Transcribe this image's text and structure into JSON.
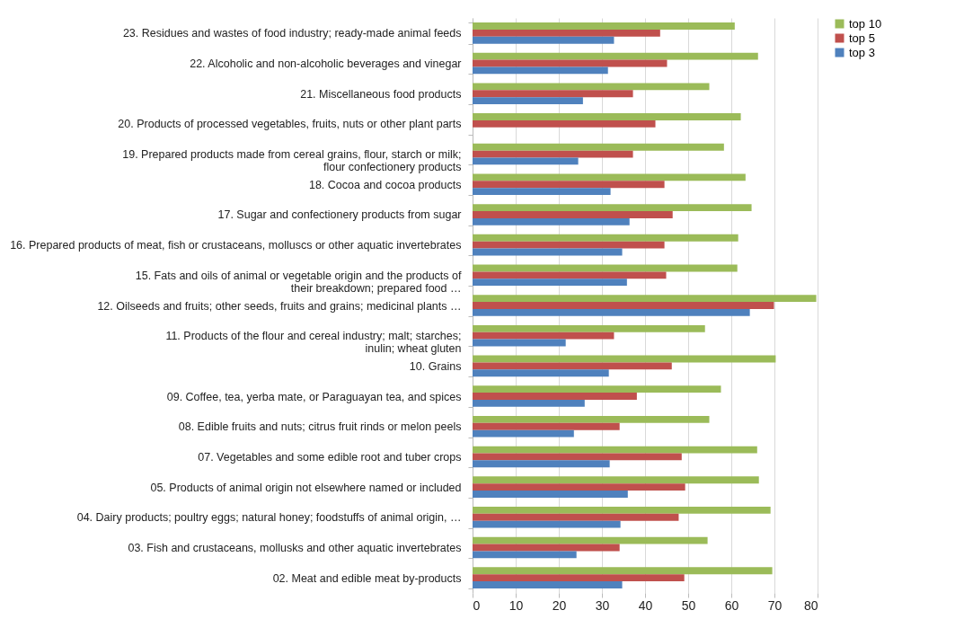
{
  "chart_data": {
    "type": "bar",
    "orientation": "horizontal",
    "categories": [
      "23. Residues and wastes of food industry; ready-made animal feeds",
      "22. Alcoholic and non-alcoholic beverages and vinegar",
      "21. Miscellaneous food products",
      "20. Products of processed vegetables, fruits, nuts or other plant parts",
      "19. Prepared products made from cereal grains, flour, starch or milk;\nflour confectionery products",
      "18. Cocoa and cocoa products",
      "17. Sugar and confectionery products from sugar",
      "16. Prepared products of meat, fish or crustaceans, molluscs or other aquatic invertebrates",
      "15. Fats and oils of animal or vegetable origin and the products of\ntheir breakdown; prepared food …",
      "12. Oilseeds and fruits; other seeds, fruits and grains; medicinal plants …",
      "11. Products of the flour and cereal industry; malt; starches;\ninulin; wheat gluten",
      "10. Grains",
      "09. Coffee, tea, yerba mate, or Paraguayan tea, and spices",
      "08. Edible fruits and nuts; citrus fruit rinds or melon peels",
      "07. Vegetables and some edible root and tuber crops",
      "05. Products of animal origin not elsewhere named or included",
      "04. Dairy products; poultry eggs; natural honey; foodstuffs of animal origin, …",
      "03. Fish and crustaceans, mollusks and other aquatic invertebrates",
      "02. Meat and edible meat by-products"
    ],
    "series": [
      {
        "name": "top 10",
        "color": "#9bbb59",
        "values": [
          60.8,
          66.2,
          54.9,
          62.2,
          58.3,
          63.3,
          64.7,
          61.6,
          61.4,
          79.7,
          53.9,
          70.3,
          57.6,
          54.9,
          66.0,
          66.4,
          69.1,
          54.5,
          69.5
        ]
      },
      {
        "name": "top 5",
        "color": "#c0504d",
        "values": [
          43.5,
          45.1,
          37.2,
          42.4,
          37.2,
          44.5,
          46.4,
          44.5,
          44.9,
          69.9,
          32.8,
          46.2,
          38.1,
          34.1,
          48.5,
          49.3,
          47.8,
          34.1,
          49.1
        ]
      },
      {
        "name": "top 3",
        "color": "#4f81bd",
        "values": [
          32.8,
          31.4,
          25.6,
          null,
          24.5,
          32.0,
          36.4,
          34.7,
          35.8,
          64.3,
          21.6,
          31.6,
          26.0,
          23.5,
          31.8,
          36.0,
          34.3,
          24.1,
          34.7
        ]
      }
    ],
    "xlim": [
      0,
      80
    ],
    "xticks": [
      0,
      10,
      20,
      30,
      40,
      50,
      60,
      70,
      80
    ],
    "grid": "x",
    "legend": "right"
  }
}
